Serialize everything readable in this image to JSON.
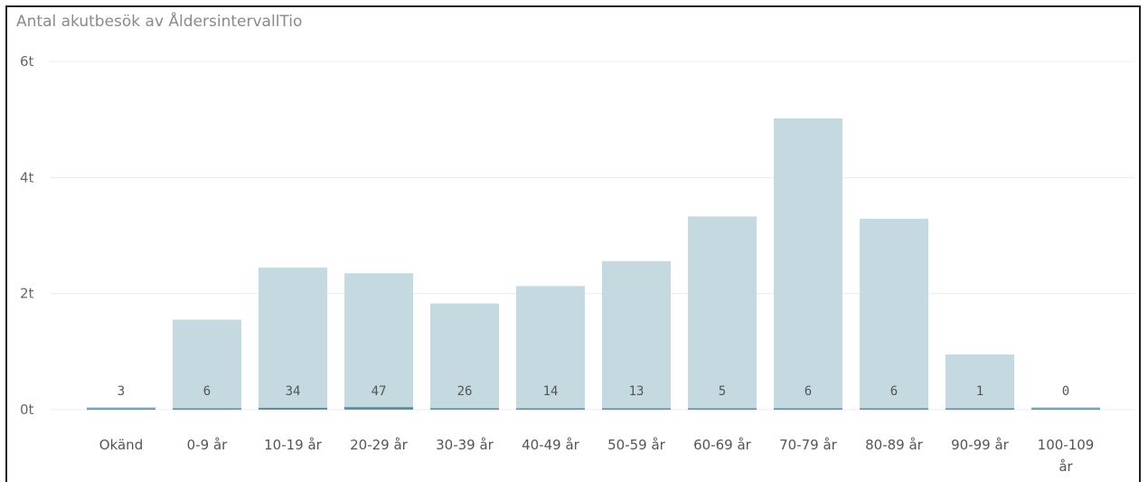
{
  "chart_data": {
    "type": "bar",
    "title": "Antal akutbesök av ÅldersintervallTio",
    "xlabel": "",
    "ylabel": "",
    "categories": [
      "Okänd",
      "0-9 år",
      "10-19 år",
      "20-29 år",
      "30-39 år",
      "40-49 år",
      "50-59 år",
      "60-69 år",
      "70-79 år",
      "80-89 år",
      "90-99 år",
      "100-109 år"
    ],
    "y_ticks": [
      "0t",
      "2t",
      "4t",
      "6t"
    ],
    "ylim": [
      0,
      6000
    ],
    "grid": true,
    "legend": "none",
    "series": [
      {
        "values": [
          30,
          1550,
          2450,
          2350,
          1830,
          2130,
          2560,
          3330,
          5020,
          3290,
          950,
          0
        ],
        "color": "#c4d9e0"
      },
      {
        "values": [
          3,
          6,
          34,
          47,
          26,
          14,
          13,
          5,
          6,
          6,
          1,
          0
        ],
        "color": "#4f7d8c"
      }
    ],
    "data_labels": [
      "3",
      "6",
      "34",
      "47",
      "26",
      "14",
      "13",
      "5",
      "6",
      "6",
      "1",
      "0"
    ]
  }
}
